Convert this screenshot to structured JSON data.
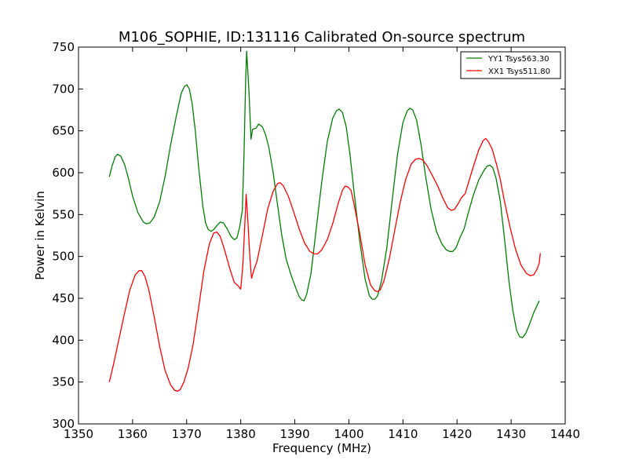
{
  "chart_data": {
    "type": "line",
    "title": "M106_SOPHIE, ID:131116 Calibrated On-source spectrum",
    "xlabel": "Frequency (MHz)",
    "ylabel": "Power in Kelvin",
    "xlim": [
      1350,
      1440
    ],
    "ylim": [
      300,
      750
    ],
    "xticks": [
      1350,
      1360,
      1370,
      1380,
      1390,
      1400,
      1410,
      1420,
      1430,
      1440
    ],
    "yticks": [
      300,
      350,
      400,
      450,
      500,
      550,
      600,
      650,
      700,
      750
    ],
    "grid": false,
    "legend_position": "top-right",
    "series": [
      {
        "name": "YY1 Tsys563.30",
        "color": "#008000",
        "points": [
          [
            1355.7,
            595
          ],
          [
            1356.2,
            608
          ],
          [
            1356.8,
            619
          ],
          [
            1357.2,
            622
          ],
          [
            1357.8,
            620
          ],
          [
            1358.5,
            610
          ],
          [
            1359.2,
            594
          ],
          [
            1360,
            572
          ],
          [
            1361,
            552
          ],
          [
            1362,
            541
          ],
          [
            1362.6,
            539
          ],
          [
            1363.2,
            540
          ],
          [
            1364,
            547
          ],
          [
            1365,
            565
          ],
          [
            1366,
            595
          ],
          [
            1367,
            632
          ],
          [
            1368,
            665
          ],
          [
            1369,
            695
          ],
          [
            1369.6,
            703
          ],
          [
            1370,
            705
          ],
          [
            1370.5,
            700
          ],
          [
            1371,
            683
          ],
          [
            1371.6,
            650
          ],
          [
            1372.2,
            608
          ],
          [
            1373,
            560
          ],
          [
            1373.5,
            540
          ],
          [
            1374,
            532
          ],
          [
            1374.5,
            530
          ],
          [
            1375,
            532
          ],
          [
            1375.6,
            537
          ],
          [
            1376.2,
            541
          ],
          [
            1376.8,
            540
          ],
          [
            1377.5,
            533
          ],
          [
            1378.2,
            524
          ],
          [
            1378.8,
            520
          ],
          [
            1379.3,
            522
          ],
          [
            1379.8,
            535
          ],
          [
            1380.3,
            555
          ],
          [
            1380.6,
            620
          ],
          [
            1380.9,
            710
          ],
          [
            1381.1,
            745
          ],
          [
            1381.5,
            700
          ],
          [
            1381.9,
            640
          ],
          [
            1382.2,
            652
          ],
          [
            1382.8,
            653
          ],
          [
            1383.3,
            658
          ],
          [
            1384,
            655
          ],
          [
            1384.6,
            645
          ],
          [
            1385.2,
            630
          ],
          [
            1386,
            600
          ],
          [
            1386.8,
            562
          ],
          [
            1387.6,
            525
          ],
          [
            1388.4,
            497
          ],
          [
            1389.3,
            478
          ],
          [
            1390.2,
            462
          ],
          [
            1390.8,
            452
          ],
          [
            1391.3,
            448
          ],
          [
            1391.7,
            447
          ],
          [
            1392.2,
            455
          ],
          [
            1393,
            480
          ],
          [
            1394,
            535
          ],
          [
            1395,
            590
          ],
          [
            1396,
            637
          ],
          [
            1397,
            665
          ],
          [
            1397.7,
            674
          ],
          [
            1398.2,
            676
          ],
          [
            1398.8,
            672
          ],
          [
            1399.5,
            655
          ],
          [
            1400.2,
            622
          ],
          [
            1401,
            575
          ],
          [
            1402,
            519
          ],
          [
            1403,
            473
          ],
          [
            1403.8,
            453
          ],
          [
            1404.3,
            449
          ],
          [
            1404.8,
            449
          ],
          [
            1405.3,
            453
          ],
          [
            1406,
            470
          ],
          [
            1407,
            510
          ],
          [
            1408,
            567
          ],
          [
            1409,
            622
          ],
          [
            1410,
            660
          ],
          [
            1410.8,
            674
          ],
          [
            1411.3,
            677
          ],
          [
            1411.8,
            675
          ],
          [
            1412.5,
            663
          ],
          [
            1413.3,
            635
          ],
          [
            1414.2,
            595
          ],
          [
            1415.2,
            556
          ],
          [
            1416.2,
            530
          ],
          [
            1417.2,
            515
          ],
          [
            1418,
            508
          ],
          [
            1418.6,
            506
          ],
          [
            1419.2,
            506
          ],
          [
            1419.8,
            510
          ],
          [
            1420.5,
            522
          ],
          [
            1421.3,
            533
          ],
          [
            1422,
            550
          ],
          [
            1423,
            573
          ],
          [
            1424,
            591
          ],
          [
            1425,
            603
          ],
          [
            1425.6,
            608
          ],
          [
            1426.1,
            609
          ],
          [
            1426.6,
            606
          ],
          [
            1427.2,
            594
          ],
          [
            1428,
            566
          ],
          [
            1428.8,
            520
          ],
          [
            1429.6,
            470
          ],
          [
            1430.3,
            436
          ],
          [
            1431,
            412
          ],
          [
            1431.6,
            404
          ],
          [
            1432.1,
            403
          ],
          [
            1432.7,
            408
          ],
          [
            1433.4,
            419
          ],
          [
            1434.2,
            433
          ],
          [
            1435.2,
            447
          ]
        ]
      },
      {
        "name": "XX1 Tsys511.80",
        "color": "#ff0000",
        "points": [
          [
            1355.7,
            350
          ],
          [
            1356.5,
            372
          ],
          [
            1357.5,
            402
          ],
          [
            1358.5,
            432
          ],
          [
            1359.5,
            460
          ],
          [
            1360.5,
            478
          ],
          [
            1361.2,
            483
          ],
          [
            1361.7,
            483
          ],
          [
            1362.3,
            476
          ],
          [
            1363,
            460
          ],
          [
            1364,
            428
          ],
          [
            1365,
            393
          ],
          [
            1366,
            364
          ],
          [
            1367,
            347
          ],
          [
            1367.8,
            340
          ],
          [
            1368.3,
            339
          ],
          [
            1368.8,
            341
          ],
          [
            1369.5,
            350
          ],
          [
            1370.3,
            367
          ],
          [
            1371.2,
            395
          ],
          [
            1372.2,
            438
          ],
          [
            1373.2,
            483
          ],
          [
            1374.2,
            515
          ],
          [
            1375,
            528
          ],
          [
            1375.6,
            529
          ],
          [
            1376.2,
            524
          ],
          [
            1377,
            508
          ],
          [
            1378,
            485
          ],
          [
            1378.8,
            469
          ],
          [
            1379.5,
            465
          ],
          [
            1380,
            461
          ],
          [
            1380.4,
            490
          ],
          [
            1380.8,
            545
          ],
          [
            1381,
            574
          ],
          [
            1381.3,
            545
          ],
          [
            1381.7,
            498
          ],
          [
            1382,
            474
          ],
          [
            1382.5,
            485
          ],
          [
            1383,
            494
          ],
          [
            1384,
            525
          ],
          [
            1385,
            557
          ],
          [
            1386,
            578
          ],
          [
            1386.8,
            587
          ],
          [
            1387.3,
            588
          ],
          [
            1387.9,
            584
          ],
          [
            1388.8,
            572
          ],
          [
            1389.8,
            553
          ],
          [
            1390.8,
            533
          ],
          [
            1391.8,
            516
          ],
          [
            1392.8,
            506
          ],
          [
            1393.6,
            503
          ],
          [
            1394.2,
            503
          ],
          [
            1395,
            508
          ],
          [
            1396,
            520
          ],
          [
            1397,
            539
          ],
          [
            1398,
            563
          ],
          [
            1398.8,
            579
          ],
          [
            1399.3,
            584
          ],
          [
            1399.8,
            583
          ],
          [
            1400.4,
            579
          ],
          [
            1401,
            561
          ],
          [
            1402,
            528
          ],
          [
            1403,
            490
          ],
          [
            1404,
            466
          ],
          [
            1404.8,
            459
          ],
          [
            1405.3,
            458
          ],
          [
            1405.8,
            460
          ],
          [
            1406.5,
            471
          ],
          [
            1407.5,
            498
          ],
          [
            1408.5,
            532
          ],
          [
            1409.5,
            565
          ],
          [
            1410.5,
            592
          ],
          [
            1411.5,
            610
          ],
          [
            1412.3,
            616
          ],
          [
            1413,
            617
          ],
          [
            1413.7,
            615
          ],
          [
            1414.5,
            608
          ],
          [
            1415.5,
            596
          ],
          [
            1416.5,
            583
          ],
          [
            1417.5,
            568
          ],
          [
            1418.3,
            558
          ],
          [
            1418.9,
            555
          ],
          [
            1419.5,
            556
          ],
          [
            1420.2,
            563
          ],
          [
            1420.8,
            570
          ],
          [
            1421.5,
            575
          ],
          [
            1422.2,
            590
          ],
          [
            1423,
            607
          ],
          [
            1424,
            627
          ],
          [
            1424.8,
            638
          ],
          [
            1425.3,
            641
          ],
          [
            1425.8,
            637
          ],
          [
            1426.5,
            628
          ],
          [
            1427.3,
            610
          ],
          [
            1428,
            592
          ],
          [
            1428.8,
            565
          ],
          [
            1429.8,
            535
          ],
          [
            1430.8,
            509
          ],
          [
            1431.8,
            490
          ],
          [
            1432.8,
            480
          ],
          [
            1433.5,
            477
          ],
          [
            1434.2,
            478
          ],
          [
            1434.8,
            485
          ],
          [
            1435.2,
            492
          ],
          [
            1435.4,
            504
          ]
        ]
      }
    ]
  }
}
